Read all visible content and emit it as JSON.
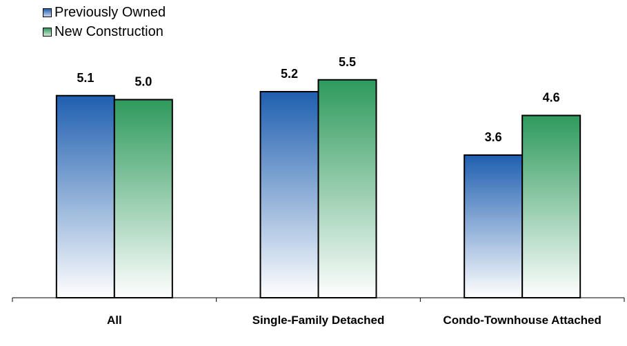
{
  "chart_data": {
    "type": "bar",
    "title": "",
    "xlabel": "",
    "ylabel": "",
    "categories": [
      "All",
      "Single-Family Detached",
      "Condo-Townhouse Attached"
    ],
    "series": [
      {
        "name": "Previously Owned",
        "values": [
          5.1,
          5.2,
          3.6
        ],
        "color": "#1f5fb0"
      },
      {
        "name": "New Construction",
        "values": [
          5.0,
          5.5,
          4.6
        ],
        "color": "#2e9a5c"
      }
    ],
    "ylim": [
      0,
      6.0
    ],
    "grid": false,
    "legend_position": "top-left",
    "data_labels": [
      "5.1",
      "5.2",
      "3.6",
      "5.0",
      "5.5",
      "4.6"
    ]
  }
}
